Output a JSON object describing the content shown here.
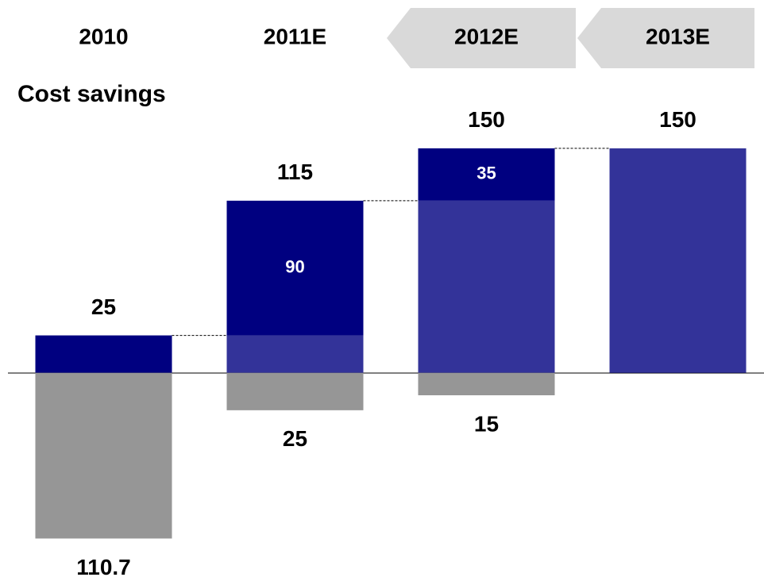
{
  "chart_data": {
    "type": "waterfall",
    "title": "Cost savings",
    "categories": [
      "2010",
      "2011E",
      "2012E",
      "2013E"
    ],
    "series": [
      {
        "color": "#000080",
        "values": [
          25,
          90,
          35,
          null
        ]
      },
      {
        "color": "#333399",
        "values": [
          null,
          25,
          115,
          150
        ]
      },
      {
        "color": "#969696",
        "values": [
          -110.7,
          -25,
          -15,
          null
        ],
        "value_labels": [
          "110.7",
          "25",
          "15",
          null
        ]
      }
    ],
    "totals": [
      25,
      115,
      150,
      150
    ],
    "ylim": [
      -120,
      160
    ]
  }
}
